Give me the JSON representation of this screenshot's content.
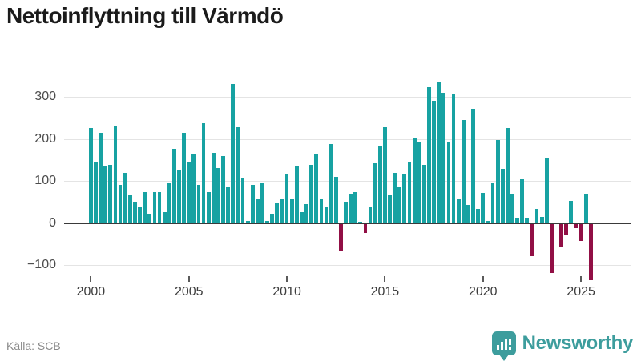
{
  "title": "Nettoinflyttning till Värmdö",
  "source": "Källa: SCB",
  "brand": {
    "name": "Newsworthy",
    "icon": "bar-chart-bubble-icon"
  },
  "colors": {
    "positive_bar": "#17a2a2",
    "negative_bar": "#910f45",
    "grid": "#e4e4e4",
    "zero_line": "#3a3a3a",
    "brand_teal": "#3d9d9d"
  },
  "chart_data": {
    "type": "bar",
    "title": "Nettoinflyttning till Värmdö",
    "frequency": "quarterly",
    "start": "2000-Q1",
    "end": "2025-Q3",
    "grid": true,
    "legend": false,
    "ylim": [
      -150,
      360
    ],
    "y_ticks": [
      300,
      200,
      100,
      0,
      -100
    ],
    "y_tick_labels": [
      "300",
      "200",
      "100",
      "0",
      "−100"
    ],
    "x_tick_labels": [
      "2000",
      "2005",
      "2010",
      "2015",
      "2020",
      "2025"
    ],
    "values": [
      225,
      146,
      214,
      135,
      139,
      232,
      90,
      120,
      66,
      51,
      40,
      73,
      22,
      73,
      73,
      26,
      97,
      177,
      125,
      214,
      145,
      163,
      90,
      237,
      73,
      166,
      131,
      160,
      84,
      330,
      228,
      107,
      4,
      90,
      59,
      96,
      5,
      21,
      47,
      56,
      117,
      56,
      135,
      26,
      45,
      139,
      163,
      58,
      38,
      188,
      110,
      -64,
      51,
      70,
      73,
      3,
      -21,
      40,
      141,
      183,
      227,
      66,
      120,
      86,
      115,
      144,
      202,
      191,
      138,
      323,
      290,
      334,
      310,
      194,
      306,
      59,
      244,
      42,
      272,
      34,
      71,
      4,
      95,
      198,
      129,
      226,
      69,
      13,
      104,
      13,
      -78,
      33,
      15,
      154,
      -117,
      0,
      -57,
      -27,
      52,
      -10,
      -40,
      69,
      -135
    ]
  }
}
